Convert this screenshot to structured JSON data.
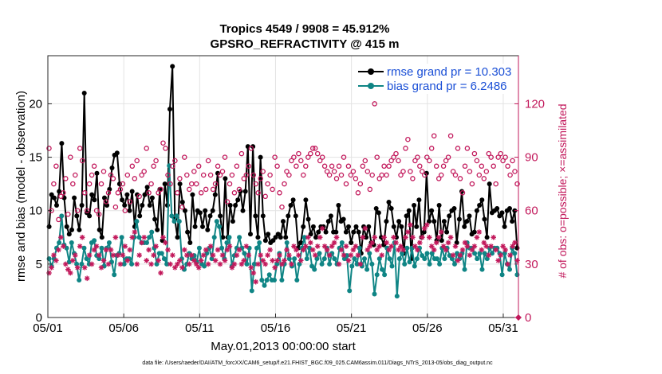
{
  "chart_data": {
    "type": "line",
    "title_line1": "Tropics 4549 / 9908 = 45.912%",
    "title_line2": "GPSRO_REFRACTIVITY @ 415 m",
    "xlabel": "May.01,2013 00:00:00 start",
    "ylabel_left": "rmse and bias (model - observation)",
    "ylabel_right": "# of obs: o=possible; ×=assimilated",
    "footnote": "data file: /Users/raeder/DAI/ATM_forcXX/CAM6_setup/f.e21.FHIST_BGC.f09_025.CAM6assim.011/Diags_NTrS_2013-05/obs_diag_output.nc",
    "x_ticks": [
      "05/01",
      "05/06",
      "05/11",
      "05/16",
      "05/21",
      "05/26",
      "05/31"
    ],
    "x_tick_days": [
      0,
      5,
      10,
      15,
      20,
      25,
      30
    ],
    "xlim": [
      0,
      31
    ],
    "ylim_left": [
      0,
      24.5
    ],
    "y_ticks_left": [
      "0",
      "5",
      "10",
      "15",
      "20"
    ],
    "y_tick_values_left": [
      0,
      5,
      10,
      15,
      20
    ],
    "ylim_right": [
      0,
      147
    ],
    "y_ticks_right": [
      "0",
      "30",
      "60",
      "90",
      "120"
    ],
    "y_tick_values_right": [
      0,
      30,
      60,
      90,
      120
    ],
    "grid": true,
    "legend_position": "top-right",
    "series": [
      {
        "name": "rmse grand pr = 10.303",
        "color": "#000000",
        "axis": "left",
        "values": [
          8.5,
          11.5,
          11.2,
          10.5,
          11.8,
          16.3,
          11.2,
          8.5,
          7.8,
          8.2,
          11.2,
          9.5,
          8.2,
          10.5,
          21.0,
          9.8,
          9.5,
          11.5,
          11.0,
          13.5,
          8.2,
          7.5,
          11.2,
          10.5,
          12.0,
          14.0,
          15.2,
          15.4,
          12.5,
          11.0,
          10.5,
          11.5,
          10.0,
          11.8,
          8.5,
          11.5,
          9.5,
          10.5,
          11.5,
          12.2,
          10.5,
          11.2,
          9.2,
          8.2,
          12.0,
          7.2,
          12.5,
          10.5,
          19.5,
          23.5,
          9.2,
          7.5,
          12.5,
          10.8,
          10.0,
          8.0,
          7.0,
          11.5,
          8.5,
          10.0,
          9.8,
          8.5,
          10.0,
          8.2,
          9.5,
          10.0,
          11.5,
          13.5,
          9.5,
          7.5,
          13.0,
          7.5,
          10.5,
          9.0,
          10.5,
          11.0,
          11.8,
          10.0,
          11.8,
          16.0,
          7.8,
          16.0,
          9.5,
          7.5,
          15.0,
          9.5,
          7.2,
          7.8,
          7.0,
          7.2,
          7.5,
          7.8,
          7.5,
          9.0,
          7.5,
          9.5,
          10.5,
          11.0,
          9.5,
          6.5,
          7.0,
          8.5,
          11.0,
          9.2,
          7.8,
          8.5,
          7.5,
          8.0,
          8.5,
          8.5,
          8.0,
          9.0,
          9.5,
          8.0,
          8.0,
          10.5,
          9.0,
          9.2,
          8.0,
          8.5,
          7.0,
          8.0,
          8.5,
          8.0,
          6.0,
          8.5,
          7.5,
          8.5,
          7.0,
          6.8,
          10.2,
          9.8,
          7.5,
          6.8,
          9.0,
          10.8,
          10.2,
          8.5,
          7.5,
          9.0,
          8.5,
          6.0,
          9.5,
          10.0,
          5.5,
          10.5,
          8.5,
          11.0,
          7.5,
          8.0,
          13.5,
          9.0,
          10.0,
          9.0,
          7.2,
          10.5,
          7.2,
          9.0,
          8.0,
          9.5,
          10.0,
          10.2,
          7.0,
          9.2,
          11.8,
          8.5,
          9.0,
          9.5,
          7.8,
          8.0,
          10.0,
          10.5,
          11.0,
          9.2,
          7.5,
          12.5,
          9.8,
          10.0,
          10.2,
          9.5,
          9.8,
          8.5,
          10.0,
          10.2,
          9.0,
          10.0,
          6.5
        ]
      },
      {
        "name": "bias grand pr = 6.2486",
        "color": "#0f8585",
        "axis": "left",
        "values": [
          5.5,
          4.8,
          5.5,
          6.5,
          7.0,
          9.5,
          6.8,
          6.5,
          5.2,
          7.0,
          6.0,
          5.0,
          3.5,
          5.0,
          6.5,
          5.5,
          5.0,
          7.0,
          7.2,
          5.8,
          5.5,
          6.5,
          4.8,
          6.5,
          7.0,
          5.2,
          4.0,
          5.8,
          6.0,
          7.5,
          5.0,
          5.5,
          5.5,
          5.0,
          7.5,
          9.0,
          7.5,
          7.0,
          7.0,
          7.0,
          7.5,
          8.0,
          6.5,
          5.0,
          6.0,
          6.0,
          5.5,
          5.0,
          14.2,
          9.5,
          9.0,
          9.5,
          9.0,
          5.5,
          4.5,
          5.0,
          6.0,
          5.5,
          5.8,
          5.2,
          6.5,
          5.0,
          4.8,
          6.0,
          6.5,
          5.5,
          7.5,
          9.0,
          8.5,
          6.5,
          5.5,
          7.0,
          7.5,
          4.8,
          5.8,
          6.5,
          7.5,
          6.5,
          6.0,
          5.0,
          6.5,
          2.5,
          5.0,
          6.5,
          7.0,
          3.5,
          3.0,
          3.5,
          4.0,
          3.5,
          3.5,
          5.0,
          6.0,
          3.5,
          5.0,
          7.0,
          5.5,
          4.8,
          5.5,
          3.5,
          5.0,
          6.5,
          7.5,
          5.5,
          6.5,
          4.8,
          4.5,
          5.5,
          6.0,
          5.0,
          5.5,
          6.5,
          5.0,
          6.0,
          5.5,
          5.0,
          6.5,
          7.0,
          5.5,
          5.8,
          2.5,
          4.8,
          5.5,
          5.0,
          6.5,
          4.8,
          5.5,
          4.5,
          6.0,
          5.0,
          2.2,
          4.0,
          5.5,
          4.5,
          4.0,
          6.5,
          5.5,
          4.8,
          7.0,
          2.0,
          5.5,
          6.0,
          5.0,
          6.5,
          5.2,
          6.5,
          4.8,
          5.5,
          6.5,
          5.8,
          5.5,
          6.0,
          5.0,
          6.0,
          5.5,
          5.5,
          5.0,
          6.5,
          5.5,
          6.5,
          5.8,
          5.5,
          5.0,
          6.0,
          5.5,
          6.0,
          4.5,
          7.0,
          6.5,
          6.5,
          6.0,
          5.5,
          6.0,
          4.5,
          6.0,
          5.5,
          6.5,
          6.0,
          6.5,
          6.5,
          6.0,
          4.0,
          6.0,
          5.0,
          4.5,
          6.5,
          6.0,
          4.0
        ]
      },
      {
        "name": "possible",
        "color": "#c2185b",
        "axis": "right",
        "marker": "circle",
        "values": [
          95,
          60,
          75,
          85,
          55,
          68,
          70,
          78,
          58,
          90,
          75,
          80,
          60,
          95,
          88,
          70,
          60,
          75,
          80,
          85,
          60,
          58,
          75,
          82,
          65,
          70,
          80,
          78,
          62,
          70,
          72,
          75,
          60,
          80,
          65,
          85,
          78,
          88,
          68,
          80,
          82,
          95,
          70,
          75,
          85,
          88,
          70,
          72,
          98,
          95,
          80,
          75,
          85,
          88,
          70,
          78,
          62,
          90,
          80,
          72,
          75,
          82,
          75,
          85,
          70,
          80,
          72,
          88,
          80,
          72,
          75,
          85,
          80,
          82,
          90,
          65,
          75,
          80,
          70,
          85,
          72,
          92,
          78,
          80,
          85,
          95,
          80,
          75,
          70,
          78,
          82,
          68,
          75,
          80,
          72,
          90,
          85,
          70,
          62,
          75,
          82,
          80,
          88,
          90,
          85,
          92,
          88,
          80,
          85,
          90,
          92,
          95,
          95,
          92,
          88,
          90,
          85,
          82,
          80,
          85,
          82,
          78,
          85,
          80,
          90,
          75,
          85,
          80,
          82,
          78,
          70,
          75,
          85,
          88,
          82,
          72,
          80,
          120,
          90,
          78,
          80,
          85,
          80,
          85,
          88,
          90,
          92,
          88,
          80,
          82,
          95,
          100,
          82,
          78,
          88,
          90,
          85,
          82,
          80,
          90,
          88,
          95,
          102,
          85,
          78,
          80,
          85,
          88,
          90,
          102,
          82,
          80,
          95,
          78,
          70,
          85,
          95,
          82,
          75,
          92,
          88,
          80,
          85,
          78,
          82,
          92,
          90,
          85,
          75,
          90,
          92,
          88,
          90,
          85,
          80,
          88,
          82,
          75
        ]
      },
      {
        "name": "assimilated",
        "color": "#c2185b",
        "axis": "right",
        "marker": "asterisk",
        "values": [
          25,
          28,
          35,
          32,
          38,
          45,
          40,
          30,
          27,
          25,
          32,
          35,
          28,
          40,
          45,
          28,
          22,
          35,
          30,
          38,
          40,
          35,
          28,
          32,
          38,
          30,
          38,
          35,
          45,
          35,
          30,
          35,
          40,
          32,
          38,
          45,
          48,
          30,
          35,
          42,
          45,
          32,
          38,
          30,
          35,
          40,
          32,
          25,
          45,
          42,
          38,
          30,
          35,
          28,
          30,
          32,
          28,
          38,
          35,
          30,
          35,
          32,
          30,
          28,
          32,
          35,
          38,
          30,
          40,
          35,
          32,
          38,
          30,
          35,
          32,
          38,
          40,
          28,
          30,
          35,
          38,
          30,
          32,
          40,
          35,
          28,
          25,
          20,
          30,
          35,
          32,
          30,
          35,
          38,
          32,
          28,
          32,
          35,
          30,
          32,
          38,
          35,
          30,
          40,
          38,
          35,
          32,
          38,
          40,
          45,
          42,
          38,
          35,
          40,
          45,
          50,
          40,
          38,
          35,
          40,
          42,
          45,
          30,
          38,
          35,
          40,
          32,
          35,
          38,
          40,
          35,
          30,
          45,
          50,
          38,
          40,
          42,
          45,
          38,
          40,
          35,
          45,
          42,
          38,
          40,
          45,
          42,
          38,
          40,
          38,
          45,
          48,
          52,
          45,
          40,
          38,
          42,
          45,
          50,
          52,
          45,
          40,
          38,
          42,
          45,
          48,
          40,
          38,
          42,
          45,
          35,
          40,
          32,
          35,
          38,
          42,
          40,
          35,
          38,
          40,
          45,
          48,
          38,
          42,
          40,
          35,
          40,
          45,
          38,
          32,
          35,
          40,
          38,
          30,
          35,
          40,
          42,
          32
        ]
      }
    ]
  }
}
